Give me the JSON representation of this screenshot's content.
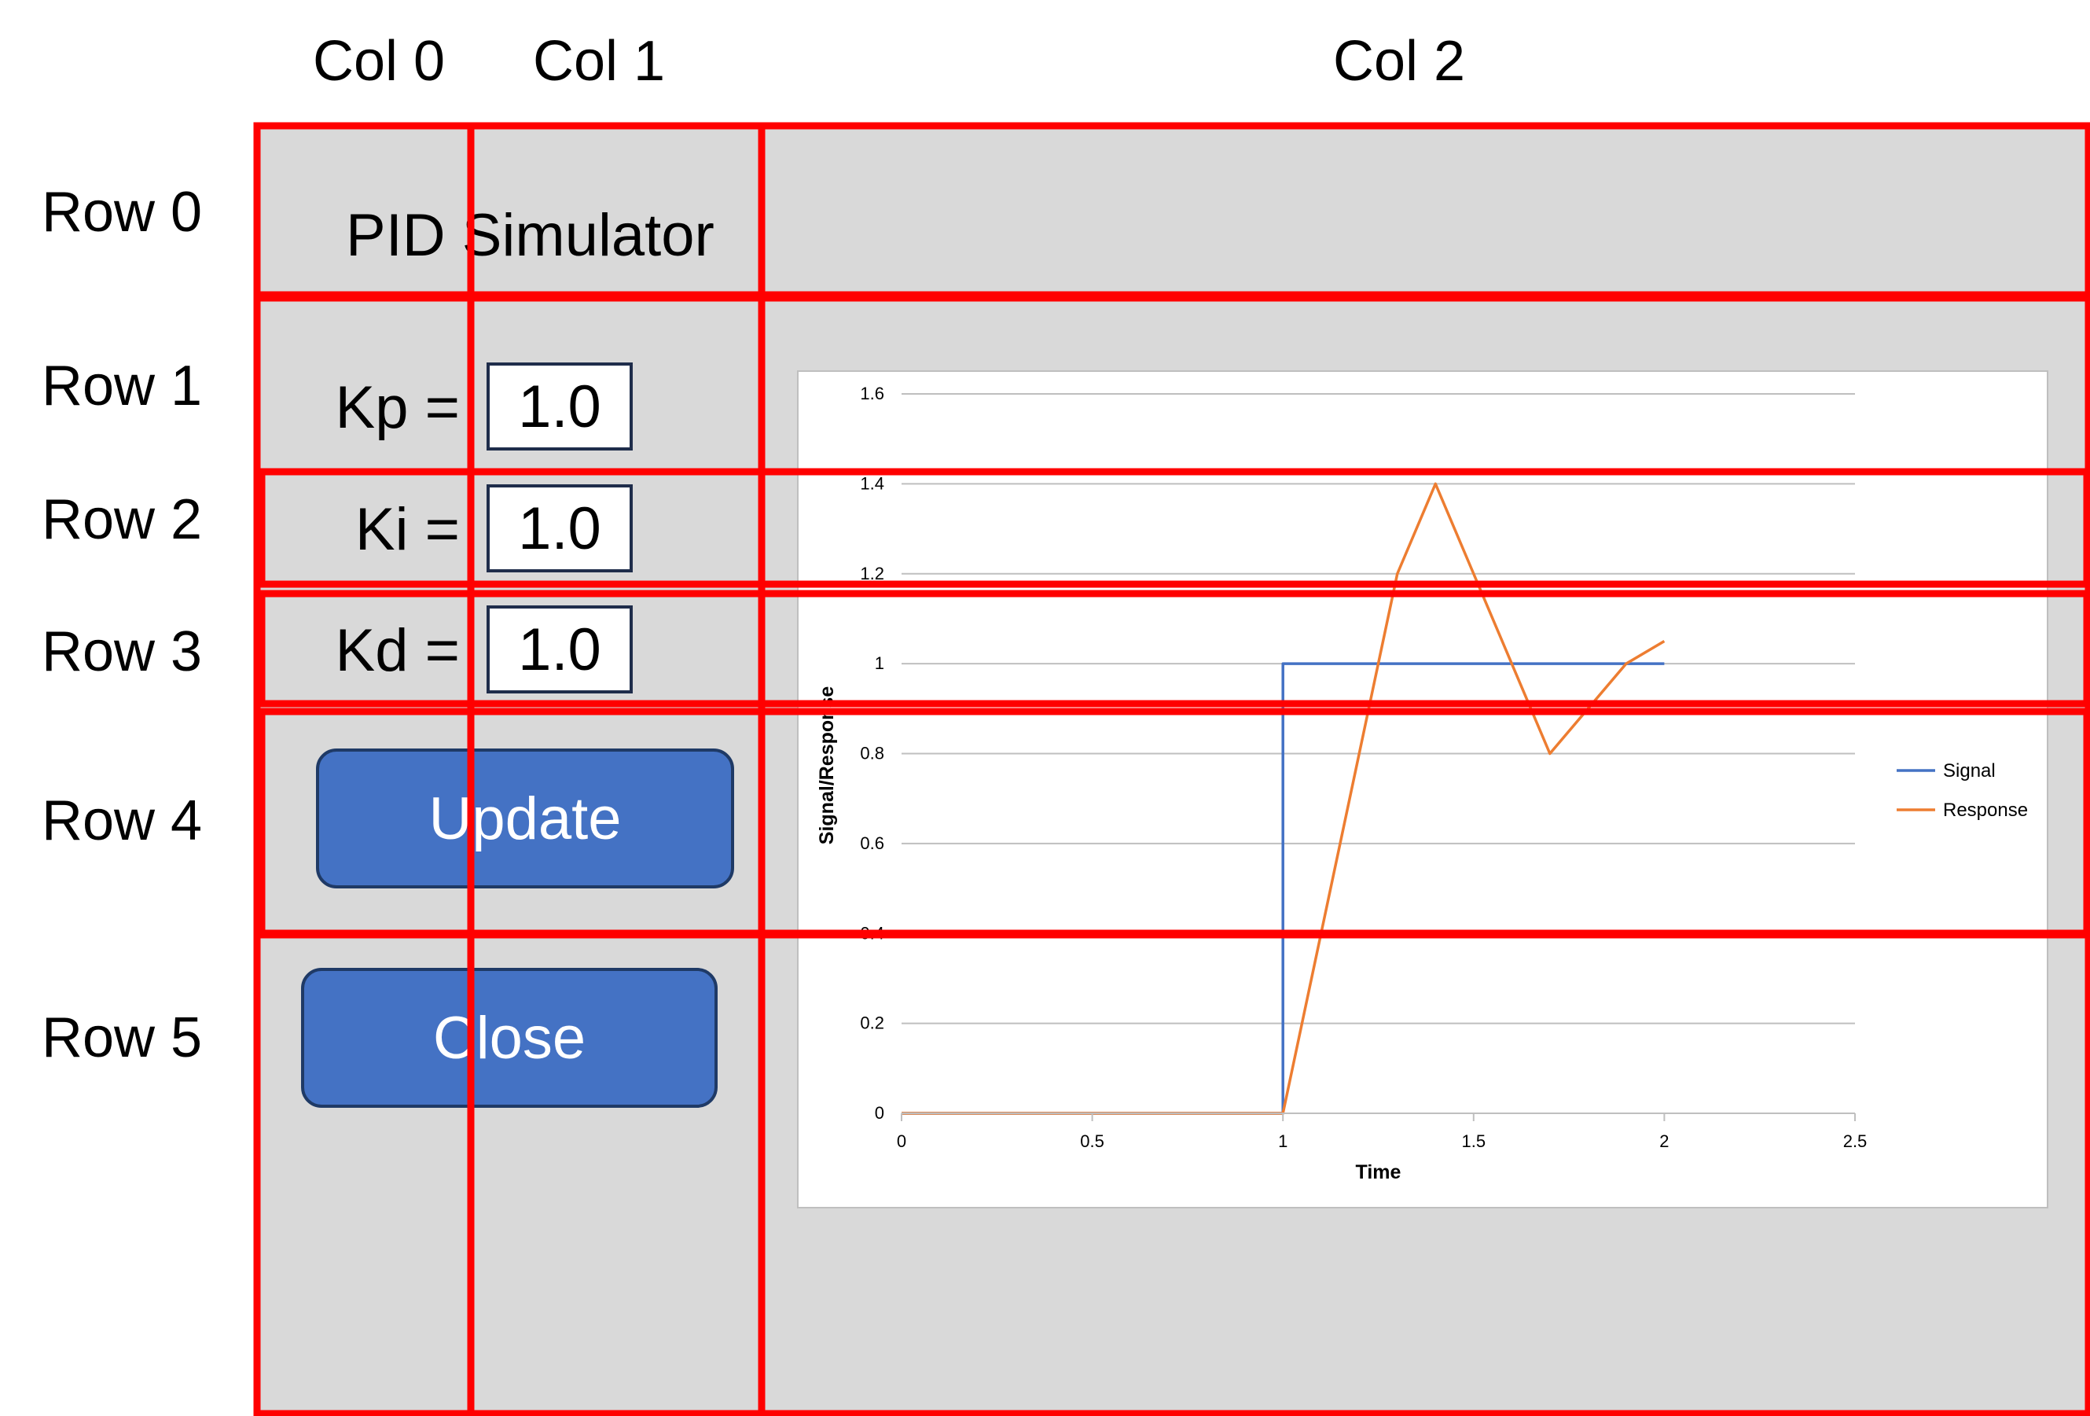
{
  "column_labels": [
    "Col 0",
    "Col 1",
    "Col 2"
  ],
  "row_labels": [
    "Row 0",
    "Row 1",
    "Row 2",
    "Row 3",
    "Row 4",
    "Row 5"
  ],
  "app": {
    "title": "PID Simulator"
  },
  "params": {
    "kp_label": "Kp =",
    "kp_value": "1.0",
    "ki_label": "Ki =",
    "ki_value": "1.0",
    "kd_label": "Kd =",
    "kd_value": "1.0"
  },
  "buttons": {
    "update_label": "Update",
    "close_label": "Close"
  },
  "colors": {
    "panel_bg": "#d9d9d9",
    "grid_overlay": "#ff0000",
    "button_fill": "#4472c4",
    "signal": "#4472c4",
    "response": "#ed7d31"
  },
  "chart_data": {
    "type": "line",
    "xlabel": "Time",
    "ylabel": "Signal/Response",
    "xlim": [
      0,
      2.5
    ],
    "ylim": [
      0,
      1.6
    ],
    "x_ticks": [
      "0",
      "0.5",
      "1",
      "1.5",
      "2",
      "2.5"
    ],
    "y_ticks": [
      "0",
      "0.2",
      "0.4",
      "0.6",
      "0.8",
      "1",
      "1.2",
      "1.4",
      "1.6"
    ],
    "grid": true,
    "legend_position": "right",
    "series": [
      {
        "name": "Signal",
        "color": "#4472c4",
        "x": [
          0,
          1,
          1,
          2
        ],
        "y": [
          0,
          0,
          1,
          1
        ]
      },
      {
        "name": "Response",
        "color": "#ed7d31",
        "x": [
          0,
          1,
          1.3,
          1.4,
          1.5,
          1.7,
          1.9,
          2
        ],
        "y": [
          0,
          0,
          1.2,
          1.4,
          1.2,
          0.8,
          1.0,
          1.05
        ]
      }
    ]
  }
}
